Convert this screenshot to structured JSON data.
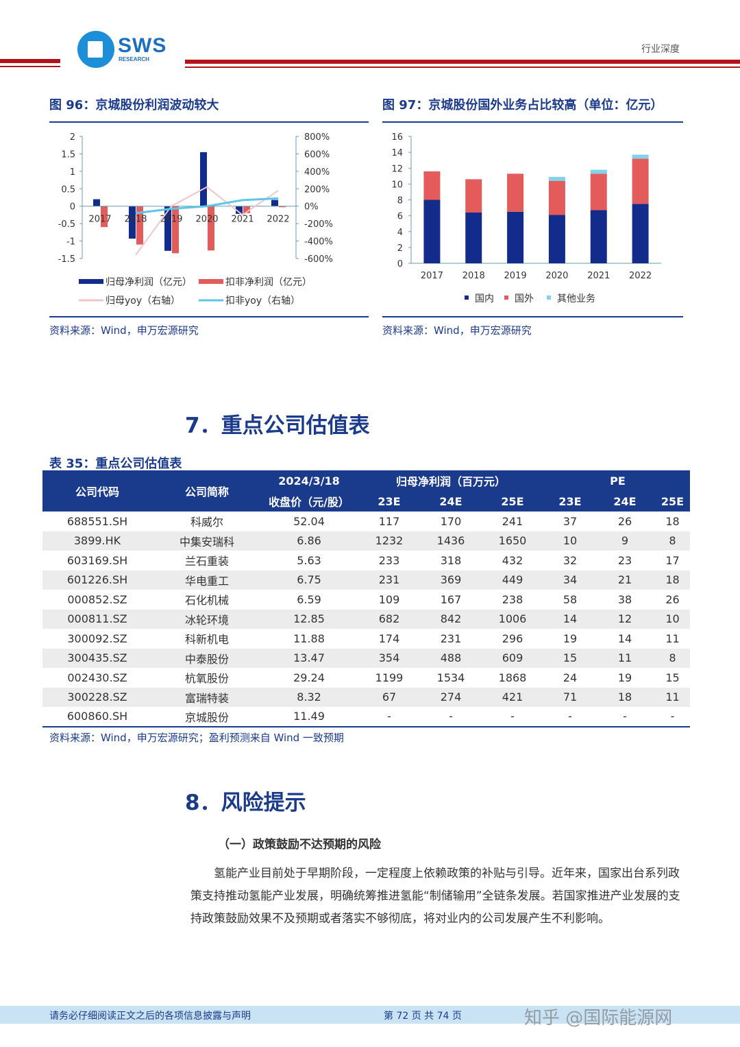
{
  "header": {
    "logo_text": "SWS",
    "logo_sub": "RESEARCH",
    "category": "行业深度"
  },
  "fig96": {
    "title": "图 96：京城股份利润波动较大",
    "source": "资料来源：Wind，申万宏源研究"
  },
  "fig97": {
    "title": "图 97：京城股份国外业务占比较高（单位：亿元）",
    "source": "资料来源：Wind，申万宏源研究"
  },
  "chart_data": [
    {
      "type": "bar+line",
      "categories": [
        "2017",
        "2018",
        "2019",
        "2020",
        "2021",
        "2022"
      ],
      "left_ylim": [
        -1.5,
        2
      ],
      "left_ticks": [
        "2",
        "1.5",
        "1",
        "0.5",
        "0",
        "-0.5",
        "-1",
        "-1.5"
      ],
      "right_ylim": [
        -600,
        800
      ],
      "right_ticks": [
        "800%",
        "600%",
        "400%",
        "200%",
        "0%",
        "-200%",
        "-400%",
        "-600%"
      ],
      "series": [
        {
          "name": "归母净利润（亿元）",
          "type": "bar",
          "color": "#132c8c",
          "values": [
            0.2,
            -0.93,
            -1.28,
            1.55,
            -0.22,
            0.18
          ]
        },
        {
          "name": "扣非净利润（亿元）",
          "type": "bar",
          "color": "#e35b5b",
          "values": [
            -0.6,
            -1.1,
            -1.35,
            -1.27,
            -0.2,
            -0.03
          ]
        },
        {
          "name": "归母yoy（右轴）",
          "type": "line",
          "axis": "right",
          "color": "#f2c4c8",
          "values": [
            null,
            -560,
            0,
            220,
            -100,
            180
          ]
        },
        {
          "name": "扣非yoy（右轴）",
          "type": "line",
          "axis": "right",
          "color": "#5cc6e8",
          "values": [
            null,
            -80,
            -30,
            0,
            70,
            90
          ]
        }
      ],
      "legend": "bottom"
    },
    {
      "type": "stacked-bar",
      "categories": [
        "2017",
        "2018",
        "2019",
        "2020",
        "2021",
        "2022"
      ],
      "ylim": [
        0,
        16
      ],
      "ticks": [
        "0",
        "2",
        "4",
        "6",
        "8",
        "10",
        "12",
        "14",
        "16"
      ],
      "series": [
        {
          "name": "国内",
          "color": "#132c8c",
          "values": [
            8.0,
            6.4,
            6.5,
            6.1,
            6.7,
            7.5
          ]
        },
        {
          "name": "国外",
          "color": "#e35b5b",
          "values": [
            3.6,
            4.2,
            4.8,
            4.3,
            4.6,
            5.7
          ]
        },
        {
          "name": "其他业务",
          "color": "#7fd3ec",
          "values": [
            0,
            0,
            0,
            0.5,
            0.5,
            0.5
          ]
        }
      ],
      "legend": "bottom"
    }
  ],
  "section7": {
    "title": "7．重点公司估值表",
    "table_title": "表 35：重点公司估值表",
    "headers": {
      "code": "公司代码",
      "name": "公司简称",
      "date": "2024/3/18",
      "price": "收盘价（元/股）",
      "profit": "归母净利润（百万元）",
      "pe": "PE",
      "y23": "23E",
      "y24": "24E",
      "y25": "25E"
    },
    "rows": [
      [
        "688551.SH",
        "科威尔",
        "52.04",
        "117",
        "170",
        "241",
        "37",
        "26",
        "18"
      ],
      [
        "3899.HK",
        "中集安瑞科",
        "6.86",
        "1232",
        "1436",
        "1650",
        "10",
        "9",
        "8"
      ],
      [
        "603169.SH",
        "兰石重装",
        "5.63",
        "233",
        "318",
        "432",
        "32",
        "23",
        "17"
      ],
      [
        "601226.SH",
        "华电重工",
        "6.75",
        "231",
        "369",
        "449",
        "34",
        "21",
        "18"
      ],
      [
        "000852.SZ",
        "石化机械",
        "6.59",
        "109",
        "167",
        "238",
        "58",
        "38",
        "26"
      ],
      [
        "000811.SZ",
        "冰轮环境",
        "12.85",
        "682",
        "842",
        "1006",
        "14",
        "12",
        "10"
      ],
      [
        "300092.SZ",
        "科新机电",
        "11.88",
        "174",
        "231",
        "296",
        "19",
        "14",
        "11"
      ],
      [
        "300435.SZ",
        "中泰股份",
        "13.47",
        "354",
        "488",
        "609",
        "15",
        "11",
        "8"
      ],
      [
        "002430.SZ",
        "杭氧股份",
        "29.24",
        "1199",
        "1534",
        "1868",
        "24",
        "19",
        "15"
      ],
      [
        "300228.SZ",
        "富瑞特装",
        "8.32",
        "67",
        "274",
        "421",
        "71",
        "18",
        "11"
      ],
      [
        "600860.SH",
        "京城股份",
        "11.49",
        "-",
        "-",
        "-",
        "-",
        "-",
        "-"
      ]
    ],
    "source": "资料来源：Wind，申万宏源研究；盈利预测来自 Wind 一致预期"
  },
  "section8": {
    "title": "8．风险提示",
    "subtitle": "（一）政策鼓励不达预期的风险",
    "paragraph": "氢能产业目前处于早期阶段，一定程度上依赖政策的补贴与引导。近年来，国家出台系列政策支持推动氢能产业发展，明确统筹推进氢能“制储输用”全链条发展。若国家推进产业发展的支持政策鼓励效果不及预期或者落实不够彻底，将对业内的公司发展产生不利影响。"
  },
  "footer": {
    "disclaimer": "请务必仔细阅读正文之后的各项信息披露与声明",
    "page": "第 72 页 共 74 页",
    "watermark": "知乎 @国际能源网"
  }
}
